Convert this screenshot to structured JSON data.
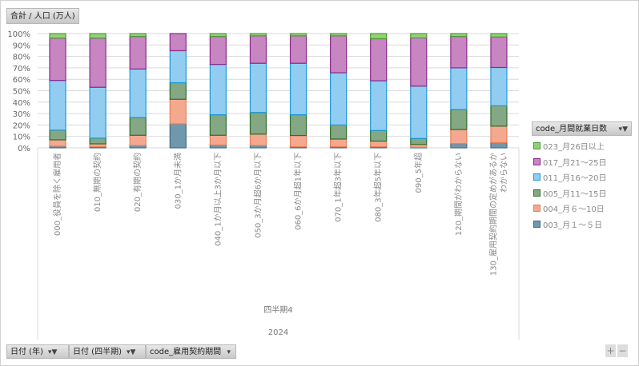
{
  "value_field": "合計 / 人口 (万人)",
  "legend_field": "code_月間就業日数",
  "filters": [
    {
      "label": "日付 (年)",
      "icon": "filter-icon"
    },
    {
      "label": "日付 (四半期)",
      "icon": "filter-icon"
    },
    {
      "label": "code_雇用契約期間",
      "icon": "dropdown-icon"
    }
  ],
  "zoom_buttons": {
    "plus": "+",
    "minus": "−"
  },
  "chart_data": {
    "type": "bar",
    "stacked": "percent",
    "title": "",
    "xlabel": "",
    "ylabel": "",
    "ylim": [
      0,
      100
    ],
    "yticks": [
      "0%",
      "10%",
      "20%",
      "30%",
      "40%",
      "50%",
      "60%",
      "70%",
      "80%",
      "90%",
      "100%"
    ],
    "grid": true,
    "legend_position": "right",
    "group_labels": {
      "quarter": "四半期4",
      "year": "2024"
    },
    "categories": [
      [
        "000_役員を除く雇用者"
      ],
      [
        "010_無期の契約"
      ],
      [
        "020_有期の契約"
      ],
      [
        "030_1か月未満"
      ],
      [
        "040_1か月以上3か月以下"
      ],
      [
        "050_3か月超6か月以下"
      ],
      [
        "060_6か月超1年以下"
      ],
      [
        "070_1年超3年以下"
      ],
      [
        "080_3年超5年以下"
      ],
      [
        "090_5年超"
      ],
      [
        "120_期間がわからない"
      ],
      [
        "130_雇用契約期間の定めがあるか",
        "わからない"
      ]
    ],
    "series": [
      {
        "name": "003_月１～５日",
        "fill": "#7197ad",
        "stroke": "#3f6d86",
        "values": [
          1.5,
          1,
          2,
          21,
          2.5,
          2,
          1,
          1,
          1,
          0.5,
          3.7,
          4.6
        ]
      },
      {
        "name": "004_月６～10日",
        "fill": "#f4a98f",
        "stroke": "#e67f5b",
        "values": [
          5.5,
          2.5,
          9,
          21.5,
          8.5,
          10,
          9.8,
          6.7,
          4.9,
          2.5,
          12.3,
          14.4
        ]
      },
      {
        "name": "005_月11～15日",
        "fill": "#83a883",
        "stroke": "#2f6e2f",
        "values": [
          8.5,
          5,
          15.5,
          14.5,
          18,
          19,
          18.2,
          12.3,
          9.3,
          5.2,
          17.5,
          17.8
        ]
      },
      {
        "name": "011_月16～20日",
        "fill": "#92cdf1",
        "stroke": "#1c9ad8",
        "values": [
          43.5,
          44.5,
          42.5,
          28,
          44,
          43,
          45,
          45.7,
          43.5,
          45.8,
          36.5,
          33.5
        ]
      },
      {
        "name": "017_月21～25日",
        "fill": "#c785c2",
        "stroke": "#8c2a8b",
        "values": [
          37,
          43,
          28.5,
          15,
          24.5,
          24,
          24,
          32.3,
          36.8,
          42.2,
          27.5,
          26.7
        ]
      },
      {
        "name": "023_月26日以上",
        "fill": "#93d176",
        "stroke": "#4e9a36",
        "values": [
          4,
          4,
          2.5,
          0,
          2.5,
          2,
          2,
          2,
          4.5,
          3.8,
          2.5,
          3
        ]
      }
    ]
  }
}
